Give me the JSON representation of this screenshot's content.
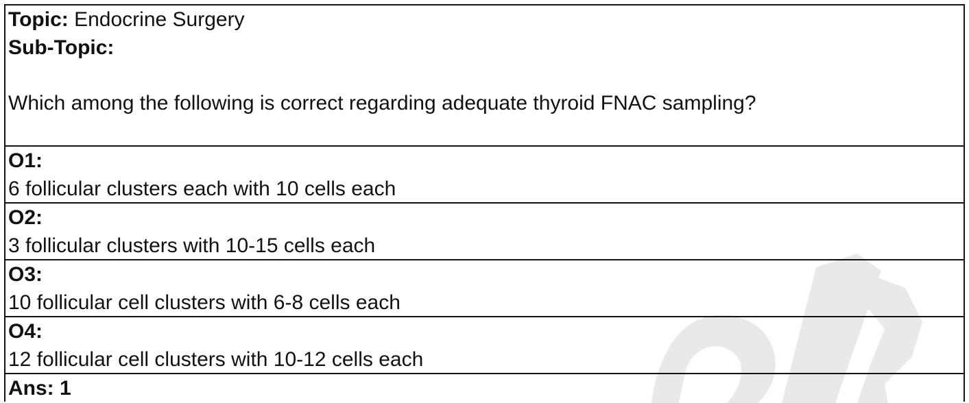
{
  "header": {
    "topic_label": "Topic:",
    "topic_value": "Endocrine Surgery",
    "subtopic_label": "Sub-Topic:",
    "subtopic_value": "",
    "question": "Which among the following is correct regarding adequate thyroid FNAC sampling?"
  },
  "options": [
    {
      "label": "O1:",
      "text": "6 follicular clusters each with 10 cells each"
    },
    {
      "label": "O2:",
      "text": "3 follicular clusters with 10-15 cells each"
    },
    {
      "label": "O3:",
      "text": "10 follicular cell clusters with 6-8 cells each"
    },
    {
      "label": "O4:",
      "text": "12 follicular cell clusters with 10-12 cells each"
    }
  ],
  "answer": {
    "text": "Ans: 1"
  },
  "colors": {
    "border": "#111111",
    "watermark": "#e9e9e9"
  },
  "watermark": {
    "icon": "watermark-graphic"
  }
}
